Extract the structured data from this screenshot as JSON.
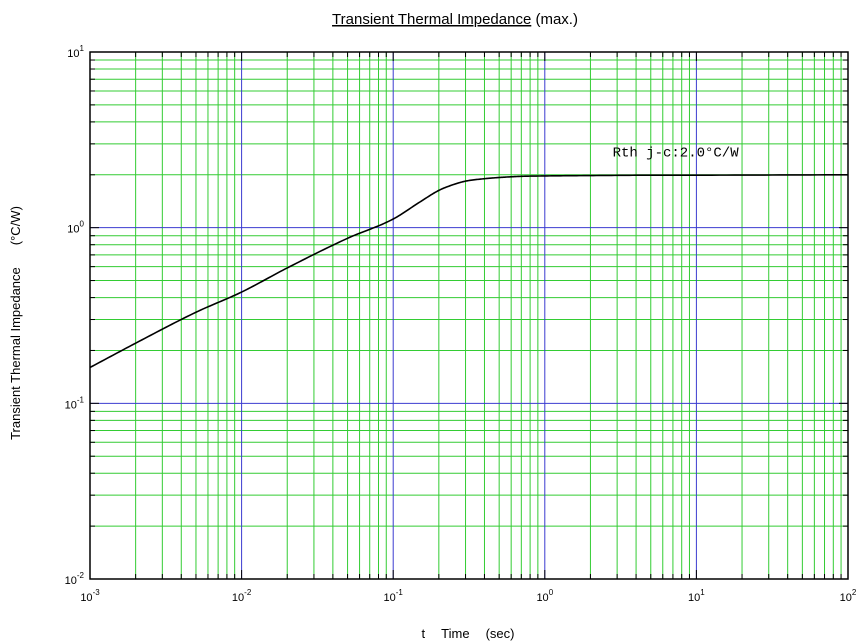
{
  "chart_data": {
    "type": "line",
    "title_main": "Transient Thermal Impedance",
    "title_suffix": " (max.)",
    "xlabel_parts": [
      "t",
      "Time",
      "(sec)"
    ],
    "ylabel_parts": [
      "Transient Thermal Impedance",
      "(°C/W)"
    ],
    "x_scale": "log",
    "y_scale": "log",
    "xlim": [
      0.001,
      100
    ],
    "ylim": [
      0.01,
      10
    ],
    "grid": true,
    "major_grid_color": "#3b3bd0",
    "minor_grid_color": "#33cc33",
    "line_color": "#000000",
    "x_ticks": [
      {
        "value": 0.001,
        "base": "10",
        "exp": "-3"
      },
      {
        "value": 0.01,
        "base": "10",
        "exp": "-2"
      },
      {
        "value": 0.1,
        "base": "10",
        "exp": "-1"
      },
      {
        "value": 1,
        "base": "10",
        "exp": "0"
      },
      {
        "value": 10,
        "base": "10",
        "exp": "1"
      },
      {
        "value": 100,
        "base": "10",
        "exp": "2"
      }
    ],
    "y_ticks": [
      {
        "value": 0.01,
        "base": "10",
        "exp": "-2"
      },
      {
        "value": 0.1,
        "base": "10",
        "exp": "-1"
      },
      {
        "value": 1,
        "base": "10",
        "exp": "0"
      },
      {
        "value": 10,
        "base": "10",
        "exp": "1"
      }
    ],
    "series": [
      {
        "x": [
          0.001,
          0.002,
          0.005,
          0.01,
          0.02,
          0.05,
          0.1,
          0.15,
          0.2,
          0.25,
          0.3,
          0.4,
          0.5,
          0.7,
          1,
          2,
          5,
          10,
          100
        ],
        "y": [
          0.16,
          0.22,
          0.33,
          0.43,
          0.59,
          0.87,
          1.12,
          1.4,
          1.63,
          1.76,
          1.84,
          1.9,
          1.93,
          1.96,
          1.97,
          1.98,
          1.99,
          1.99,
          2.0
        ]
      }
    ],
    "annotations": [
      {
        "text": "Rth j-c:2.0°C/W",
        "x": 2.8,
        "y": 2.55
      }
    ]
  }
}
